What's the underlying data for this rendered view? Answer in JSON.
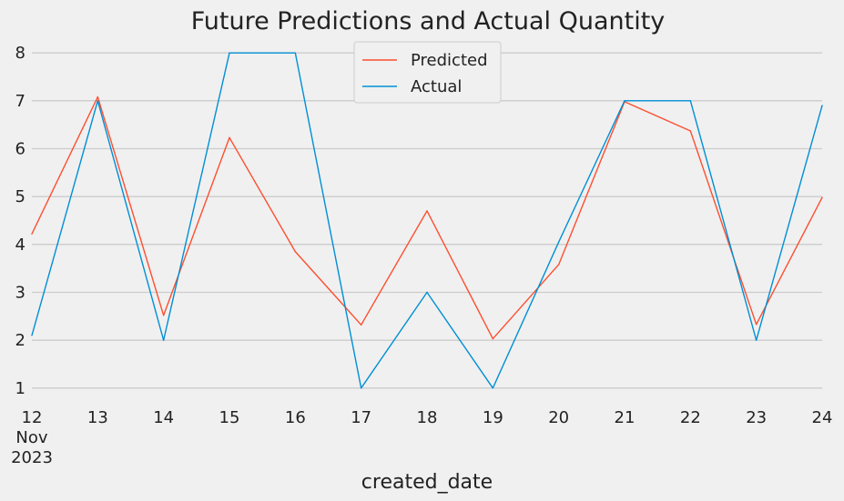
{
  "chart_data": {
    "type": "line",
    "title": "Future Predictions and Actual Quantity",
    "xlabel": "created_date",
    "ylabel": "",
    "x": [
      "12",
      "13",
      "14",
      "15",
      "16",
      "17",
      "18",
      "19",
      "20",
      "21",
      "22",
      "23",
      "24"
    ],
    "x_sub_labels": [
      "Nov",
      "2023"
    ],
    "ylim": [
      0.75,
      8.25
    ],
    "yticks": [
      1,
      2,
      3,
      4,
      5,
      6,
      7,
      8
    ],
    "grid": "horizontal",
    "legend_position": "top-center",
    "series": [
      {
        "name": "Predicted",
        "color": "#fc4f30",
        "values": [
          4.22,
          7.08,
          2.52,
          6.23,
          3.85,
          2.32,
          4.7,
          2.03,
          3.58,
          6.98,
          6.37,
          2.33,
          4.98
        ]
      },
      {
        "name": "Actual",
        "color": "#008fd5",
        "values": [
          2.1,
          7,
          2,
          8,
          8,
          1,
          3,
          1,
          4.05,
          7,
          7,
          2,
          6.9
        ]
      }
    ]
  }
}
